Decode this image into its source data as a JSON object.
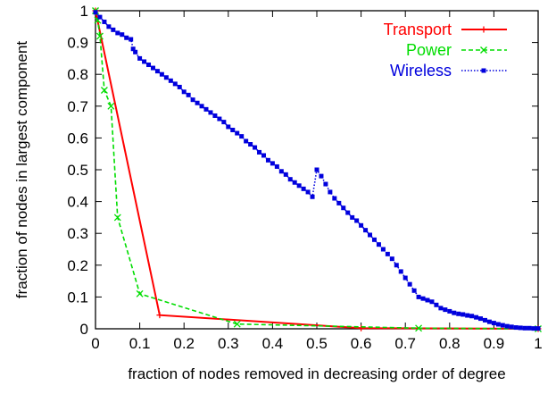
{
  "chart_data": {
    "type": "line",
    "title": "",
    "xlabel": "fraction of nodes removed in decreasing order of degree",
    "ylabel": "fraction of nodes in largest component",
    "xlim": [
      0,
      1
    ],
    "ylim": [
      0,
      1
    ],
    "x_ticks": [
      "0",
      "0.1",
      "0.2",
      "0.3",
      "0.4",
      "0.5",
      "0.6",
      "0.7",
      "0.8",
      "0.9",
      "1"
    ],
    "y_ticks": [
      "0",
      "0.1",
      "0.2",
      "0.3",
      "0.4",
      "0.5",
      "0.6",
      "0.7",
      "0.8",
      "0.9",
      "1"
    ],
    "legend_position": "top-right",
    "grid": false,
    "series": [
      {
        "name": "Transport",
        "color": "#ff0000",
        "line_style": "solid",
        "marker": "plus",
        "x": [
          0,
          0.145,
          0.6,
          1.0
        ],
        "y": [
          1.0,
          0.043,
          0.002,
          0.0
        ]
      },
      {
        "name": "Power",
        "color": "#00dd00",
        "line_style": "dashed",
        "marker": "cross",
        "x": [
          0,
          0.005,
          0.01,
          0.02,
          0.035,
          0.05,
          0.1,
          0.32,
          0.73,
          1.0
        ],
        "y": [
          1.0,
          0.97,
          0.92,
          0.75,
          0.7,
          0.35,
          0.11,
          0.015,
          0.002,
          0.0
        ],
        "legend_marker": "cross"
      },
      {
        "name": "Wireless",
        "color": "#0000dd",
        "line_style": "dotted",
        "marker": "square",
        "x": [
          0,
          0.01,
          0.02,
          0.03,
          0.04,
          0.05,
          0.06,
          0.07,
          0.08,
          0.085,
          0.09,
          0.1,
          0.11,
          0.12,
          0.13,
          0.14,
          0.15,
          0.16,
          0.17,
          0.18,
          0.19,
          0.2,
          0.21,
          0.22,
          0.23,
          0.24,
          0.25,
          0.26,
          0.27,
          0.28,
          0.29,
          0.3,
          0.31,
          0.32,
          0.33,
          0.34,
          0.35,
          0.36,
          0.37,
          0.38,
          0.39,
          0.4,
          0.41,
          0.42,
          0.43,
          0.44,
          0.45,
          0.46,
          0.47,
          0.48,
          0.49,
          0.5,
          0.51,
          0.52,
          0.53,
          0.54,
          0.55,
          0.56,
          0.57,
          0.58,
          0.59,
          0.6,
          0.61,
          0.62,
          0.63,
          0.64,
          0.65,
          0.66,
          0.67,
          0.68,
          0.69,
          0.7,
          0.71,
          0.72,
          0.73,
          0.74,
          0.75,
          0.76,
          0.77,
          0.78,
          0.79,
          0.8,
          0.81,
          0.82,
          0.83,
          0.84,
          0.85,
          0.86,
          0.87,
          0.88,
          0.89,
          0.9,
          0.91,
          0.92,
          0.93,
          0.94,
          0.95,
          0.96,
          0.97,
          0.98,
          0.99,
          1.0
        ],
        "y": [
          0.995,
          0.98,
          0.965,
          0.95,
          0.94,
          0.93,
          0.925,
          0.915,
          0.91,
          0.88,
          0.87,
          0.85,
          0.84,
          0.83,
          0.82,
          0.81,
          0.8,
          0.79,
          0.78,
          0.77,
          0.76,
          0.745,
          0.735,
          0.72,
          0.71,
          0.7,
          0.69,
          0.68,
          0.67,
          0.66,
          0.65,
          0.635,
          0.625,
          0.615,
          0.605,
          0.59,
          0.58,
          0.57,
          0.555,
          0.545,
          0.53,
          0.52,
          0.51,
          0.495,
          0.485,
          0.47,
          0.46,
          0.45,
          0.44,
          0.43,
          0.415,
          0.5,
          0.48,
          0.455,
          0.43,
          0.41,
          0.395,
          0.38,
          0.365,
          0.35,
          0.34,
          0.325,
          0.31,
          0.295,
          0.28,
          0.265,
          0.25,
          0.235,
          0.22,
          0.2,
          0.18,
          0.16,
          0.14,
          0.12,
          0.1,
          0.095,
          0.09,
          0.085,
          0.075,
          0.065,
          0.06,
          0.055,
          0.05,
          0.047,
          0.045,
          0.042,
          0.04,
          0.036,
          0.032,
          0.027,
          0.022,
          0.018,
          0.014,
          0.011,
          0.008,
          0.006,
          0.004,
          0.003,
          0.002,
          0.002,
          0.001,
          0.001
        ]
      }
    ]
  }
}
